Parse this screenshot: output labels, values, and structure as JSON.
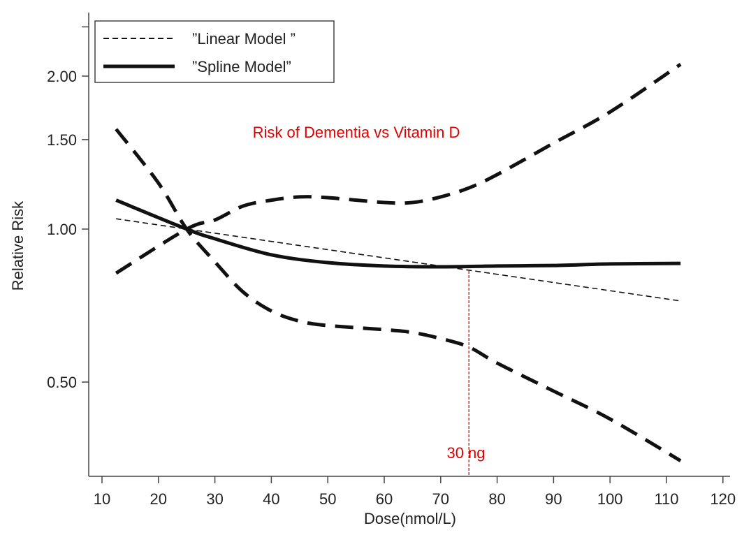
{
  "chart_data": {
    "type": "line",
    "title": "",
    "xlabel": "Dose(nmol/L)",
    "ylabel": "Relative Risk",
    "xlim": [
      8,
      122
    ],
    "ylim": [
      0.326,
      2.65
    ],
    "y_scale": "log",
    "grid": false,
    "legend_placement": "top-left",
    "x_ticks": [
      10,
      20,
      30,
      40,
      50,
      60,
      70,
      80,
      90,
      100,
      110,
      120
    ],
    "x_tick_labels": [
      "10",
      "20",
      "30",
      "40",
      "50",
      "60",
      "70",
      "80",
      "90",
      "100",
      "110",
      "120"
    ],
    "y_ticks": [
      0.5,
      1.0,
      1.5,
      2.0,
      2.5
    ],
    "y_tick_labels": [
      "0.50",
      "1.00",
      "1.50",
      "2.00",
      ""
    ],
    "legend": [
      {
        "label": "”Linear Model ”",
        "style": "thin-dashed"
      },
      {
        "label": "”Spline Model”",
        "style": "thick-solid"
      }
    ],
    "series": [
      {
        "name": "”Linear Model ”",
        "style": "thin-dashed",
        "x": [
          12.5,
          25,
          112.5
        ],
        "y": [
          1.048,
          1.0,
          0.722
        ]
      },
      {
        "name": "”Spline Model”",
        "style": "thick-solid",
        "x": [
          12.5,
          25,
          30,
          40,
          50,
          60,
          70,
          80,
          90,
          100,
          112.5
        ],
        "y": [
          1.14,
          1.0,
          0.957,
          0.89,
          0.859,
          0.846,
          0.843,
          0.846,
          0.848,
          0.854,
          0.856
        ]
      },
      {
        "style": "thick-dashed",
        "x": [
          12.5,
          25,
          30,
          35,
          40,
          45,
          50,
          60,
          65,
          70,
          75,
          80,
          90,
          100,
          112.5
        ],
        "y": [
          0.819,
          1.0,
          1.042,
          1.11,
          1.14,
          1.157,
          1.153,
          1.128,
          1.128,
          1.157,
          1.205,
          1.28,
          1.476,
          1.7,
          2.11
        ]
      },
      {
        "style": "thick-dashed",
        "x": [
          12.5,
          20,
          25,
          30,
          35,
          40,
          45,
          50,
          60,
          65,
          70,
          75,
          80,
          90,
          100,
          112.5
        ],
        "y": [
          1.573,
          1.232,
          1.0,
          0.862,
          0.752,
          0.69,
          0.659,
          0.646,
          0.634,
          0.626,
          0.609,
          0.586,
          0.545,
          0.48,
          0.423,
          0.35
        ]
      }
    ],
    "annotations": [
      {
        "text": "Risk of Dementia vs Vitamin D",
        "color": "#e00000"
      },
      {
        "text": "30 ng",
        "color": "#e00000",
        "x": 75,
        "reference_line": "vertical dashed at x=75"
      }
    ]
  }
}
